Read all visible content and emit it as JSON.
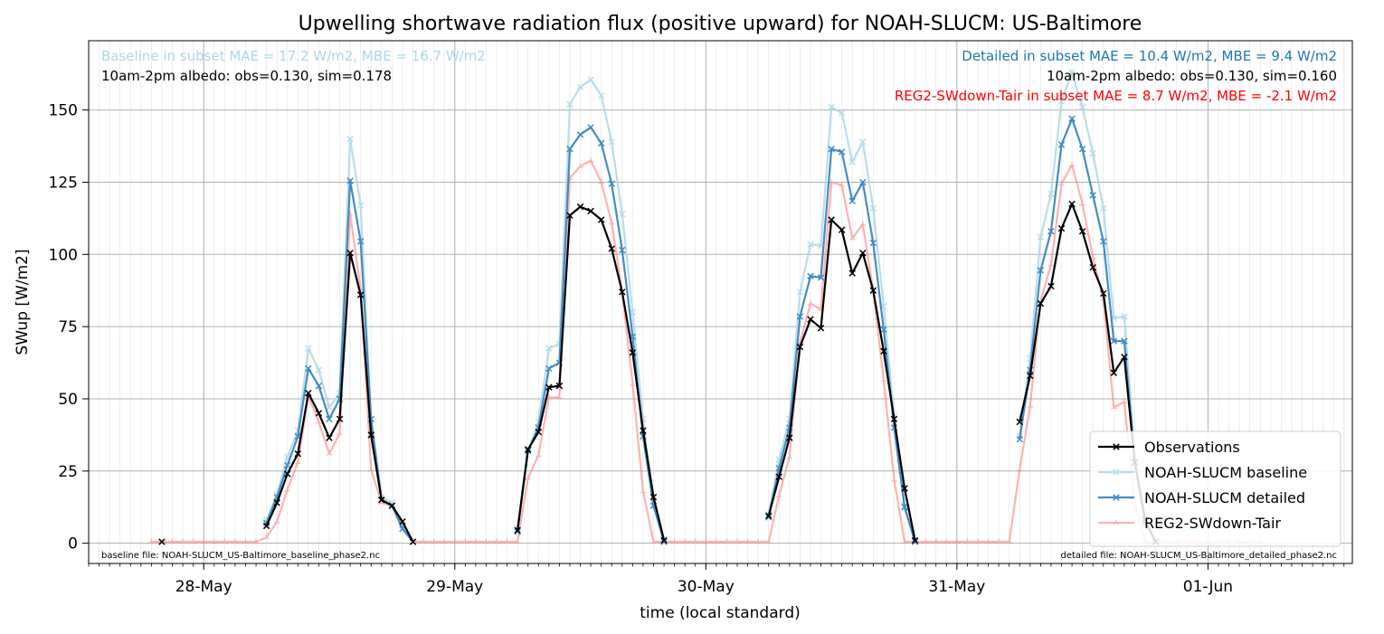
{
  "chart_data": {
    "type": "line",
    "title": "Upwelling shortwave radiation flux (positive upward) for NOAH-SLUCM: US-Baltimore",
    "xlabel": "time (local standard)",
    "ylabel": "SWup [W/m2]",
    "x_unit": "hours since 28-May 00:00 (local standard)",
    "xlim": [
      -11.0,
      109.8
    ],
    "ylim": [
      -7,
      174
    ],
    "y_ticks": [
      0,
      25,
      50,
      75,
      100,
      125,
      150
    ],
    "x_ticks": [
      {
        "x": 0,
        "label": "28-May"
      },
      {
        "x": 24,
        "label": "29-May"
      },
      {
        "x": 48,
        "label": "30-May"
      },
      {
        "x": 72,
        "label": "31-May"
      },
      {
        "x": 96,
        "label": "01-Jun"
      }
    ],
    "grid": true,
    "legend_position": "lower right",
    "annotations": {
      "baseline_stats": "Baseline in subset MAE = 17.2 W/m2, MBE = 16.7 W/m2",
      "baseline_albedo": "10am-2pm albedo: obs=0.130, sim=0.178",
      "detailed_stats": "Detailed in subset MAE = 10.4 W/m2, MBE = 9.4 W/m2",
      "detailed_albedo": "10am-2pm albedo: obs=0.130, sim=0.160",
      "reg2_stats": "REG2-SWdown-Tair in subset MAE = 8.7 W/m2, MBE = -2.1 W/m2",
      "baseline_file": "baseline file: NOAH-SLUCM_US-Baltimore_baseline_phase2.nc",
      "detailed_file": "detailed file: NOAH-SLUCM_US-Baltimore_detailed_phase2.nc"
    },
    "series": [
      {
        "name": "Observations",
        "color": "#000000",
        "marker": "x",
        "points": [
          [
            -4,
            0.5
          ],
          [
            6,
            6
          ],
          [
            7,
            14
          ],
          [
            8,
            24
          ],
          [
            9,
            31
          ],
          [
            10,
            52
          ],
          [
            11,
            45
          ],
          [
            12,
            36.5
          ],
          [
            13,
            43
          ],
          [
            14,
            100.5
          ],
          [
            15,
            86
          ],
          [
            16,
            37.5
          ],
          [
            17,
            15
          ],
          [
            18,
            13
          ],
          [
            19,
            7.5
          ],
          [
            20,
            0.5
          ],
          [
            30,
            4.5
          ],
          [
            31,
            32.5
          ],
          [
            32,
            38.5
          ],
          [
            33,
            54
          ],
          [
            34,
            54.5
          ],
          [
            35,
            113.5
          ],
          [
            36,
            116.5
          ],
          [
            37,
            115
          ],
          [
            38,
            112
          ],
          [
            39,
            102
          ],
          [
            40,
            87
          ],
          [
            41,
            66
          ],
          [
            42,
            39
          ],
          [
            43,
            16
          ],
          [
            44,
            1
          ],
          [
            54,
            9.5
          ],
          [
            55,
            23
          ],
          [
            56,
            36.5
          ],
          [
            57,
            68
          ],
          [
            58,
            77.5
          ],
          [
            59,
            74.5
          ],
          [
            60,
            112
          ],
          [
            61,
            108.5
          ],
          [
            62,
            93.5
          ],
          [
            63,
            100.5
          ],
          [
            64,
            87.5
          ],
          [
            65,
            66.5
          ],
          [
            66,
            43
          ],
          [
            67,
            19
          ],
          [
            68,
            1
          ],
          [
            78,
            42
          ],
          [
            79,
            58
          ],
          [
            80,
            83
          ],
          [
            81,
            89
          ],
          [
            82,
            109
          ],
          [
            83,
            117.5
          ],
          [
            84,
            108
          ],
          [
            85,
            95.5
          ],
          [
            86,
            86.5
          ],
          [
            87,
            59
          ],
          [
            88,
            64.5
          ],
          [
            89,
            28
          ],
          [
            90,
            8
          ],
          [
            91,
            0.5
          ]
        ]
      },
      {
        "name": "NOAH-SLUCM baseline",
        "color": "#add8e6",
        "marker": "x",
        "points": [
          [
            6,
            8
          ],
          [
            7,
            17
          ],
          [
            8,
            30
          ],
          [
            9,
            39
          ],
          [
            10,
            67.5
          ],
          [
            11,
            60
          ],
          [
            12,
            47
          ],
          [
            13,
            52
          ],
          [
            14,
            140
          ],
          [
            15,
            117
          ],
          [
            16,
            43
          ],
          [
            17,
            16
          ],
          [
            18,
            14
          ],
          [
            19,
            6
          ],
          [
            20,
            0.5
          ],
          [
            30,
            4
          ],
          [
            31,
            32
          ],
          [
            32,
            42
          ],
          [
            33,
            67.5
          ],
          [
            34,
            69
          ],
          [
            35,
            152
          ],
          [
            36,
            158
          ],
          [
            37,
            160.5
          ],
          [
            38,
            155
          ],
          [
            39,
            139
          ],
          [
            40,
            114
          ],
          [
            41,
            80
          ],
          [
            42,
            43
          ],
          [
            43,
            13
          ],
          [
            44,
            0.5
          ],
          [
            54,
            10
          ],
          [
            55,
            29
          ],
          [
            56,
            43
          ],
          [
            57,
            87
          ],
          [
            58,
            103.5
          ],
          [
            59,
            103
          ],
          [
            60,
            151
          ],
          [
            61,
            149
          ],
          [
            62,
            132
          ],
          [
            63,
            139
          ],
          [
            64,
            116
          ],
          [
            65,
            82
          ],
          [
            66,
            44
          ],
          [
            67,
            13
          ],
          [
            68,
            0.5
          ],
          [
            78,
            37
          ],
          [
            79,
            64
          ],
          [
            80,
            106
          ],
          [
            81,
            121
          ],
          [
            82,
            153
          ],
          [
            83,
            163
          ],
          [
            84,
            151
          ],
          [
            85,
            135
          ],
          [
            86,
            116
          ],
          [
            87,
            78
          ],
          [
            88,
            78.5
          ],
          [
            89,
            31
          ],
          [
            90,
            8
          ],
          [
            91,
            0.5
          ]
        ]
      },
      {
        "name": "NOAH-SLUCM detailed",
        "color": "#3a86c0",
        "marker": "x",
        "points": [
          [
            6,
            7
          ],
          [
            7,
            16
          ],
          [
            8,
            27
          ],
          [
            9,
            37
          ],
          [
            10,
            60.5
          ],
          [
            11,
            54.5
          ],
          [
            12,
            43
          ],
          [
            13,
            50
          ],
          [
            14,
            125.5
          ],
          [
            15,
            104.5
          ],
          [
            16,
            43
          ],
          [
            17,
            15
          ],
          [
            18,
            13
          ],
          [
            19,
            5
          ],
          [
            20,
            0.5
          ],
          [
            30,
            4
          ],
          [
            31,
            32
          ],
          [
            32,
            40
          ],
          [
            33,
            60.5
          ],
          [
            34,
            62.5
          ],
          [
            35,
            136.5
          ],
          [
            36,
            141.5
          ],
          [
            37,
            144
          ],
          [
            38,
            138.5
          ],
          [
            39,
            124.5
          ],
          [
            40,
            101.5
          ],
          [
            41,
            71.5
          ],
          [
            42,
            37
          ],
          [
            43,
            13
          ],
          [
            44,
            0.5
          ],
          [
            54,
            9
          ],
          [
            55,
            26
          ],
          [
            56,
            40
          ],
          [
            57,
            78.5
          ],
          [
            58,
            92.5
          ],
          [
            59,
            92
          ],
          [
            60,
            136.5
          ],
          [
            61,
            135.5
          ],
          [
            62,
            118.5
          ],
          [
            63,
            125
          ],
          [
            64,
            104
          ],
          [
            65,
            74
          ],
          [
            66,
            40
          ],
          [
            67,
            12.5
          ],
          [
            68,
            0.5
          ],
          [
            78,
            36
          ],
          [
            79,
            60
          ],
          [
            80,
            94.5
          ],
          [
            81,
            108
          ],
          [
            82,
            138
          ],
          [
            83,
            147
          ],
          [
            84,
            136.5
          ],
          [
            85,
            120.5
          ],
          [
            86,
            104.5
          ],
          [
            87,
            70
          ],
          [
            88,
            70
          ],
          [
            89,
            28
          ],
          [
            90,
            7
          ],
          [
            91,
            0.5
          ]
        ]
      },
      {
        "name": "REG2-SWdown-Tair",
        "color": "#ff8080",
        "marker": "tri",
        "points": [
          [
            -5,
            0.5
          ],
          [
            -4,
            0.5
          ],
          [
            -3,
            0.5
          ],
          [
            -2,
            0.5
          ],
          [
            -1,
            0.5
          ],
          [
            0,
            0.5
          ],
          [
            1,
            0.5
          ],
          [
            2,
            0.5
          ],
          [
            3,
            0.5
          ],
          [
            4,
            0.5
          ],
          [
            5,
            0.5
          ],
          [
            6,
            2
          ],
          [
            7,
            7.5
          ],
          [
            8,
            18.5
          ],
          [
            9,
            28
          ],
          [
            10,
            51
          ],
          [
            11,
            42
          ],
          [
            12,
            31
          ],
          [
            13,
            38
          ],
          [
            14,
            114
          ],
          [
            15,
            88
          ],
          [
            16,
            25.5
          ],
          [
            17,
            14
          ],
          [
            18,
            13
          ],
          [
            19,
            5.5
          ],
          [
            20,
            0.5
          ],
          [
            21,
            0.5
          ],
          [
            22,
            0.5
          ],
          [
            23,
            0.5
          ],
          [
            24,
            0.5
          ],
          [
            25,
            0.5
          ],
          [
            26,
            0.5
          ],
          [
            27,
            0.5
          ],
          [
            28,
            0.5
          ],
          [
            29,
            0.5
          ],
          [
            30,
            0.5
          ],
          [
            31,
            22.5
          ],
          [
            32,
            30.5
          ],
          [
            33,
            50.5
          ],
          [
            34,
            50.5
          ],
          [
            35,
            126.5
          ],
          [
            36,
            130.5
          ],
          [
            37,
            132.5
          ],
          [
            38,
            125
          ],
          [
            39,
            111
          ],
          [
            40,
            87
          ],
          [
            41,
            55
          ],
          [
            42,
            18
          ],
          [
            43,
            0.5
          ],
          [
            44,
            0.5
          ],
          [
            45,
            0.5
          ],
          [
            46,
            0.5
          ],
          [
            47,
            0.5
          ],
          [
            48,
            0.5
          ],
          [
            49,
            0.5
          ],
          [
            50,
            0.5
          ],
          [
            51,
            0.5
          ],
          [
            52,
            0.5
          ],
          [
            53,
            0.5
          ],
          [
            54,
            0.5
          ],
          [
            55,
            16.5
          ],
          [
            56,
            30
          ],
          [
            57,
            69.5
          ],
          [
            58,
            83
          ],
          [
            59,
            81
          ],
          [
            60,
            125
          ],
          [
            61,
            124
          ],
          [
            62,
            105.5
          ],
          [
            63,
            110.5
          ],
          [
            64,
            87.5
          ],
          [
            65,
            56.5
          ],
          [
            66,
            22
          ],
          [
            67,
            0.5
          ],
          [
            68,
            0.5
          ],
          [
            69,
            0.5
          ],
          [
            70,
            0.5
          ],
          [
            71,
            0.5
          ],
          [
            72,
            0.5
          ],
          [
            73,
            0.5
          ],
          [
            74,
            0.5
          ],
          [
            75,
            0.5
          ],
          [
            76,
            0.5
          ],
          [
            77,
            0.5
          ],
          [
            78,
            25.5
          ],
          [
            79,
            47.5
          ],
          [
            80,
            84
          ],
          [
            81,
            96.5
          ],
          [
            82,
            124.5
          ],
          [
            83,
            131
          ],
          [
            84,
            117.5
          ],
          [
            85,
            99
          ],
          [
            86,
            84.5
          ],
          [
            87,
            47
          ],
          [
            88,
            49
          ],
          [
            89,
            13
          ],
          [
            90,
            0.5
          ],
          [
            91,
            0.5
          ],
          [
            92,
            0.5
          ],
          [
            93,
            0.5
          ],
          [
            94,
            0.5
          ],
          [
            95,
            0.5
          ],
          [
            96,
            0.5
          ],
          [
            97,
            0.5
          ],
          [
            98,
            0.5
          ],
          [
            99,
            0.5
          ],
          [
            100,
            0.5
          ],
          [
            101,
            0.5
          ]
        ]
      }
    ]
  }
}
